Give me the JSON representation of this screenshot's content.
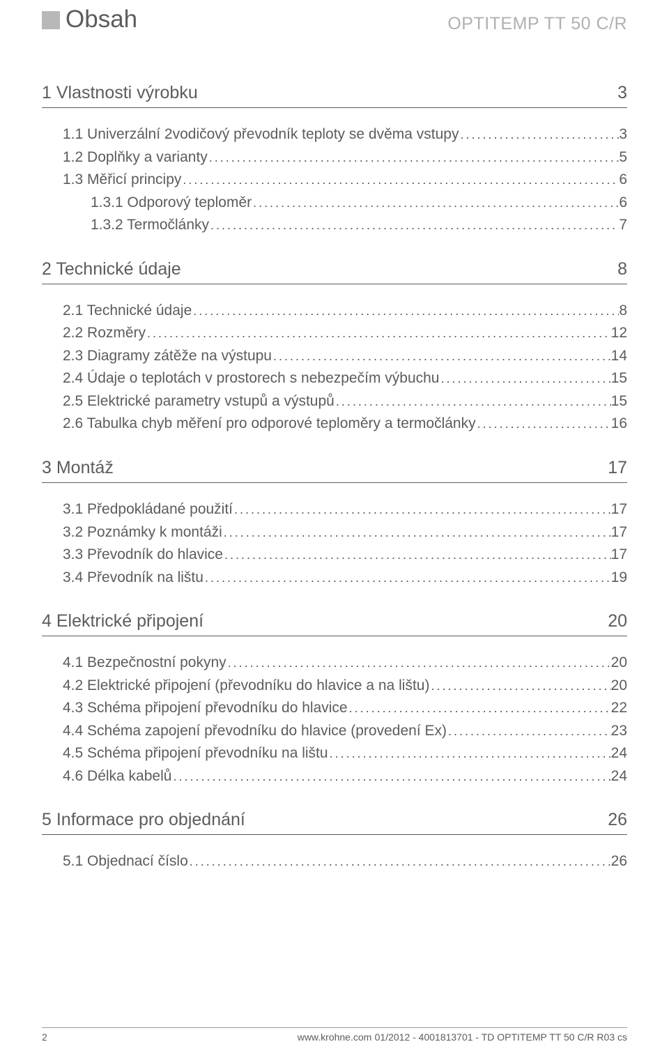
{
  "header": {
    "title": "Obsah",
    "product": "OPTITEMP TT 50 C/R"
  },
  "sections": [
    {
      "num": "1",
      "title": "Vlastnosti výrobku",
      "page": "3",
      "items": [
        {
          "num": "1.1",
          "title": "Univerzální 2vodičový převodník teploty se dvěma vstupy",
          "page": "3",
          "indent": 0
        },
        {
          "num": "1.2",
          "title": "Doplňky a varianty",
          "page": "5",
          "indent": 0
        },
        {
          "num": "1.3",
          "title": "Měřicí principy",
          "page": "6",
          "indent": 0
        },
        {
          "num": "1.3.1",
          "title": "Odporový teploměr",
          "page": "6",
          "indent": 1
        },
        {
          "num": "1.3.2",
          "title": "Termočlánky",
          "page": "7",
          "indent": 1
        }
      ]
    },
    {
      "num": "2",
      "title": "Technické údaje",
      "page": "8",
      "items": [
        {
          "num": "2.1",
          "title": "Technické údaje",
          "page": "8",
          "indent": 0
        },
        {
          "num": "2.2",
          "title": "Rozměry",
          "page": "12",
          "indent": 0
        },
        {
          "num": "2.3",
          "title": "Diagramy zátěže na výstupu",
          "page": "14",
          "indent": 0
        },
        {
          "num": "2.4",
          "title": "Údaje o teplotách v prostorech s nebezpečím výbuchu",
          "page": "15",
          "indent": 0
        },
        {
          "num": "2.5",
          "title": "Elektrické parametry vstupů a výstupů",
          "page": "15",
          "indent": 0
        },
        {
          "num": "2.6",
          "title": "Tabulka chyb měření pro odporové teploměry a termočlánky",
          "page": "16",
          "indent": 0
        }
      ]
    },
    {
      "num": "3",
      "title": "Montáž",
      "page": "17",
      "items": [
        {
          "num": "3.1",
          "title": "Předpokládané použití",
          "page": "17",
          "indent": 0
        },
        {
          "num": "3.2",
          "title": "Poznámky k montáži",
          "page": "17",
          "indent": 0
        },
        {
          "num": "3.3",
          "title": "Převodník do hlavice",
          "page": "17",
          "indent": 0
        },
        {
          "num": "3.4",
          "title": "Převodník na lištu",
          "page": "19",
          "indent": 0
        }
      ]
    },
    {
      "num": "4",
      "title": "Elektrické  připojení",
      "page": "20",
      "items": [
        {
          "num": "4.1",
          "title": "Bezpečnostní pokyny",
          "page": "20",
          "indent": 0
        },
        {
          "num": "4.2",
          "title": "Elektrické připojení (převodníku do hlavice a na lištu)",
          "page": "20",
          "indent": 0
        },
        {
          "num": "4.3",
          "title": "Schéma připojení převodníku do hlavice",
          "page": "22",
          "indent": 0
        },
        {
          "num": "4.4",
          "title": "Schéma zapojení převodníku do hlavice (provedení Ex)",
          "page": "23",
          "indent": 0
        },
        {
          "num": "4.5",
          "title": "Schéma připojení převodníku na lištu",
          "page": "24",
          "indent": 0
        },
        {
          "num": "4.6",
          "title": "Délka kabelů",
          "page": "24",
          "indent": 0
        }
      ]
    },
    {
      "num": "5",
      "title": "Informace pro objednání",
      "page": "26",
      "items": [
        {
          "num": "5.1",
          "title": "Objednací číslo",
          "page": "26",
          "indent": 0
        }
      ]
    }
  ],
  "footer": {
    "page_number": "2",
    "site": "www.krohne.com",
    "doc_id": "01/2012 - 4001813701 - TD OPTITEMP TT 50 C/R R03 cs"
  }
}
